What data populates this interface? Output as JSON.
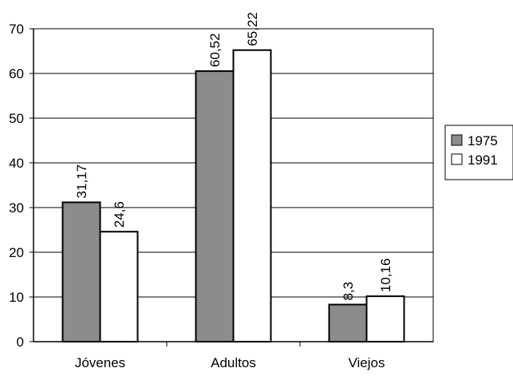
{
  "chart_data": {
    "type": "bar",
    "categories": [
      "Jóvenes",
      "Adultos",
      "Viejos"
    ],
    "series": [
      {
        "name": "1975",
        "values": [
          31.17,
          60.52,
          8.3
        ],
        "labels": [
          "31,17",
          "60,52",
          "8,3"
        ],
        "color": "#8c8c8c"
      },
      {
        "name": "1991",
        "values": [
          24.6,
          65.22,
          10.16
        ],
        "labels": [
          "24,6",
          "65,22",
          "10,16"
        ],
        "color": "#ffffff"
      }
    ],
    "ylim": [
      0,
      70
    ],
    "yticks": [
      0,
      10,
      20,
      30,
      40,
      50,
      60,
      70
    ],
    "grid": true,
    "legend_position": "right"
  }
}
